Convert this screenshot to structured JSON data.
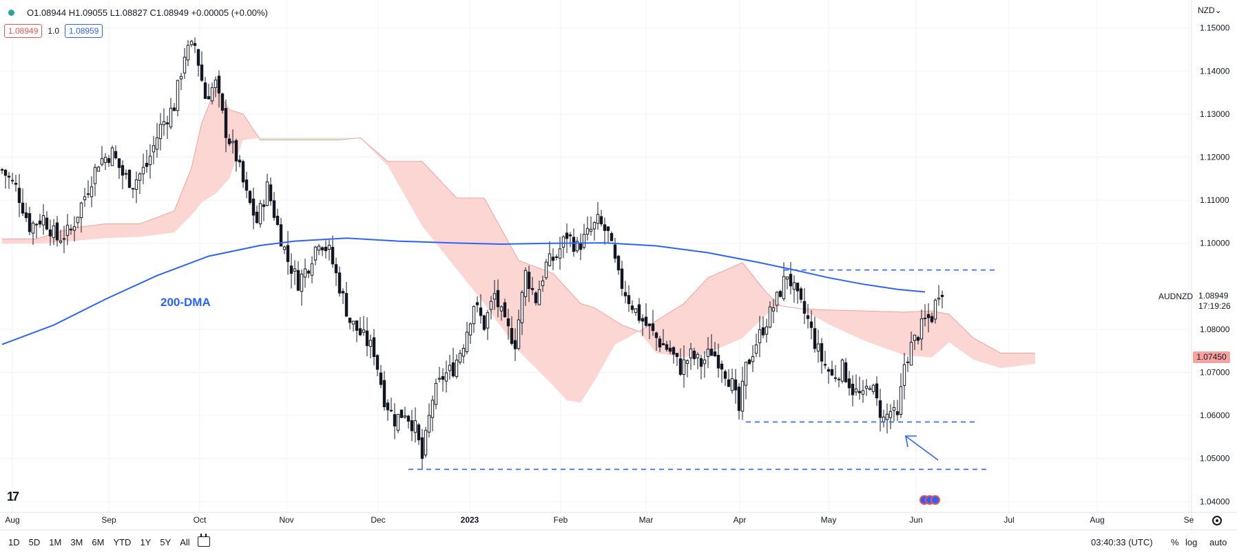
{
  "header": {
    "ohlc": "O1.08944 H1.09055 L1.08827 C1.08949 +0.00005 (+0.00%)",
    "bid_value": "1.08949",
    "spread": "1.0",
    "ask_value": "1.08959"
  },
  "currency": "NZD",
  "currency_chevron": "⌄",
  "symbol": "AUDNZD",
  "last_price": "1.08949",
  "countdown": "17:19:26",
  "cloud_tag": "1.07450",
  "annotation": "200-DMA",
  "logo": "17",
  "timeframes": [
    "1D",
    "5D",
    "1M",
    "3M",
    "6M",
    "YTD",
    "1Y",
    "5Y",
    "All"
  ],
  "clock": "03:40:33 (UTC)",
  "right_controls": {
    "percent": "%",
    "log": "log",
    "auto": "auto"
  },
  "colors": {
    "bull": "#ffffff",
    "bear": "#131722",
    "ma": "#2962ff",
    "cloud_bull": "#d8ecd9",
    "cloud_bear": "#fbd6d3",
    "cloud_line": "#f4a19a",
    "dashed": "#2962ff",
    "grid": "#f0f3fa"
  },
  "icons": [
    "calendar-range-icon",
    "settings-icon",
    "event-flags-icon",
    "tradingview-logo-icon"
  ],
  "chart_data": {
    "type": "candlestick",
    "symbol": "AUDNZD",
    "ylim": [
      1.0375,
      1.1565
    ],
    "y_ticks": [
      "1.15000",
      "1.14000",
      "1.13000",
      "1.12000",
      "1.11000",
      "1.10000",
      "1.08000",
      "1.07000",
      "1.06000",
      "1.05000",
      "1.04000"
    ],
    "x_ticks": [
      "Aug",
      "Sep",
      "Oct",
      "Nov",
      "Dec",
      "2023",
      "Feb",
      "Mar",
      "Apr",
      "May",
      "Jun",
      "Jul",
      "Aug",
      "Se"
    ],
    "close_path": [
      [
        0,
        1.117
      ],
      [
        4,
        1.113
      ],
      [
        8,
        1.104
      ],
      [
        12,
        1.106
      ],
      [
        16,
        1.101
      ],
      [
        20,
        1.103
      ],
      [
        24,
        1.111
      ],
      [
        28,
        1.119
      ],
      [
        32,
        1.121
      ],
      [
        35,
        1.116
      ],
      [
        38,
        1.114
      ],
      [
        42,
        1.118
      ],
      [
        46,
        1.127
      ],
      [
        50,
        1.132
      ],
      [
        53,
        1.144
      ],
      [
        56,
        1.146
      ],
      [
        59,
        1.134
      ],
      [
        62,
        1.137
      ],
      [
        65,
        1.126
      ],
      [
        68,
        1.12
      ],
      [
        71,
        1.111
      ],
      [
        74,
        1.105
      ],
      [
        77,
        1.113
      ],
      [
        80,
        1.104
      ],
      [
        83,
        1.096
      ],
      [
        86,
        1.091
      ],
      [
        89,
        1.095
      ],
      [
        92,
        1.101
      ],
      [
        95,
        1.098
      ],
      [
        98,
        1.09
      ],
      [
        101,
        1.082
      ],
      [
        104,
        1.079
      ],
      [
        108,
        1.075
      ],
      [
        111,
        1.064
      ],
      [
        114,
        1.059
      ],
      [
        117,
        1.061
      ],
      [
        120,
        1.057
      ],
      [
        122,
        1.05
      ],
      [
        125,
        1.064
      ],
      [
        128,
        1.069
      ],
      [
        131,
        1.071
      ],
      [
        134,
        1.077
      ],
      [
        137,
        1.086
      ],
      [
        140,
        1.081
      ],
      [
        143,
        1.088
      ],
      [
        146,
        1.081
      ],
      [
        149,
        1.077
      ],
      [
        152,
        1.093
      ],
      [
        155,
        1.087
      ],
      [
        158,
        1.095
      ],
      [
        161,
        1.097
      ],
      [
        164,
        1.102
      ],
      [
        167,
        1.099
      ],
      [
        170,
        1.102
      ],
      [
        173,
        1.105
      ],
      [
        176,
        1.102
      ],
      [
        179,
        1.092
      ],
      [
        182,
        1.087
      ],
      [
        185,
        1.083
      ],
      [
        188,
        1.08
      ],
      [
        191,
        1.077
      ],
      [
        194,
        1.075
      ],
      [
        197,
        1.071
      ],
      [
        200,
        1.074
      ],
      [
        203,
        1.072
      ],
      [
        206,
        1.075
      ],
      [
        209,
        1.072
      ],
      [
        212,
        1.067
      ],
      [
        214,
        1.061
      ],
      [
        216,
        1.071
      ],
      [
        219,
        1.077
      ],
      [
        222,
        1.082
      ],
      [
        225,
        1.087
      ],
      [
        228,
        1.093
      ],
      [
        231,
        1.087
      ],
      [
        234,
        1.082
      ],
      [
        236,
        1.077
      ],
      [
        238,
        1.073
      ],
      [
        241,
        1.069
      ],
      [
        244,
        1.071
      ],
      [
        247,
        1.066
      ],
      [
        250,
        1.064
      ],
      [
        252,
        1.068
      ],
      [
        254,
        1.063
      ],
      [
        256,
        1.059
      ],
      [
        258,
        1.061
      ],
      [
        260,
        1.059
      ],
      [
        262,
        1.072
      ],
      [
        264,
        1.076
      ],
      [
        266,
        1.079
      ],
      [
        268,
        1.082
      ],
      [
        270,
        1.083
      ],
      [
        272,
        1.089
      ],
      [
        273,
        1.0895
      ]
    ],
    "ma200": [
      [
        0,
        1.0765
      ],
      [
        15,
        1.081
      ],
      [
        30,
        1.087
      ],
      [
        45,
        1.0925
      ],
      [
        60,
        1.097
      ],
      [
        75,
        1.0995
      ],
      [
        85,
        1.1005
      ],
      [
        100,
        1.1012
      ],
      [
        115,
        1.1005
      ],
      [
        130,
        1.1001
      ],
      [
        145,
        1.0998
      ],
      [
        160,
        1.1
      ],
      [
        175,
        1.1001
      ],
      [
        190,
        1.0994
      ],
      [
        205,
        1.0978
      ],
      [
        220,
        1.0955
      ],
      [
        230,
        1.0938
      ],
      [
        240,
        1.092
      ],
      [
        250,
        1.0905
      ],
      [
        260,
        1.0893
      ],
      [
        268,
        1.0887
      ]
    ],
    "cloud_upper": [
      [
        0,
        1.101
      ],
      [
        10,
        1.101
      ],
      [
        20,
        1.1035
      ],
      [
        30,
        1.1045
      ],
      [
        40,
        1.1045
      ],
      [
        50,
        1.1075
      ],
      [
        55,
        1.1175
      ],
      [
        58,
        1.128
      ],
      [
        62,
        1.136
      ],
      [
        66,
        1.131
      ],
      [
        70,
        1.13
      ],
      [
        75,
        1.124
      ],
      [
        85,
        1.124
      ],
      [
        98,
        1.124
      ],
      [
        104,
        1.1245
      ],
      [
        112,
        1.119
      ],
      [
        122,
        1.119
      ],
      [
        132,
        1.1105
      ],
      [
        140,
        1.1105
      ],
      [
        150,
        1.096
      ],
      [
        160,
        1.093
      ],
      [
        168,
        1.086
      ],
      [
        172,
        1.085
      ],
      [
        180,
        1.081
      ],
      [
        185,
        1.0795
      ],
      [
        190,
        1.082
      ],
      [
        198,
        1.086
      ],
      [
        205,
        1.092
      ],
      [
        215,
        1.0955
      ],
      [
        222,
        1.0885
      ],
      [
        226,
        1.0855
      ],
      [
        232,
        1.0848
      ],
      [
        240,
        1.0845
      ],
      [
        250,
        1.0843
      ],
      [
        262,
        1.084
      ],
      [
        270,
        1.0843
      ],
      [
        275,
        1.0835
      ],
      [
        282,
        1.078
      ],
      [
        290,
        1.0745
      ],
      [
        300,
        1.0745
      ]
    ],
    "cloud_lower": [
      [
        0,
        1.0999
      ],
      [
        10,
        1.0999
      ],
      [
        20,
        1.1005
      ],
      [
        30,
        1.1012
      ],
      [
        40,
        1.1015
      ],
      [
        50,
        1.1025
      ],
      [
        55,
        1.1065
      ],
      [
        58,
        1.1095
      ],
      [
        62,
        1.1115
      ],
      [
        66,
        1.115
      ],
      [
        70,
        1.124
      ],
      [
        75,
        1.1245
      ],
      [
        85,
        1.1245
      ],
      [
        98,
        1.1245
      ],
      [
        104,
        1.1245
      ],
      [
        112,
        1.118
      ],
      [
        122,
        1.104
      ],
      [
        132,
        1.094
      ],
      [
        140,
        1.086
      ],
      [
        150,
        1.075
      ],
      [
        160,
        1.067
      ],
      [
        164,
        1.0635
      ],
      [
        168,
        1.063
      ],
      [
        172,
        1.068
      ],
      [
        178,
        1.0765
      ],
      [
        185,
        1.0795
      ],
      [
        190,
        1.0745
      ],
      [
        198,
        1.0735
      ],
      [
        205,
        1.0745
      ],
      [
        215,
        1.078
      ],
      [
        222,
        1.0835
      ],
      [
        226,
        1.0855
      ],
      [
        232,
        1.0848
      ],
      [
        240,
        1.0812
      ],
      [
        250,
        1.0775
      ],
      [
        262,
        1.074
      ],
      [
        270,
        1.0735
      ],
      [
        275,
        1.077
      ],
      [
        282,
        1.073
      ],
      [
        290,
        1.071
      ],
      [
        300,
        1.072
      ]
    ],
    "horizontal_levels": [
      {
        "price": 1.0938,
        "from_bar": 227,
        "to_bar": 289
      },
      {
        "price": 1.0585,
        "from_bar": 216,
        "to_bar": 283
      },
      {
        "price": 1.0475,
        "from_bar": 118,
        "to_bar": 287
      }
    ]
  }
}
